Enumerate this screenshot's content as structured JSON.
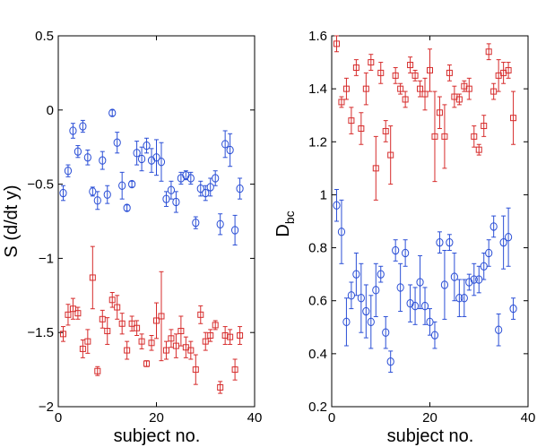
{
  "colors": {
    "blue": "#2b4fd6",
    "red": "#d62b2b",
    "axis": "#000000"
  },
  "chart_data": [
    {
      "type": "scatter",
      "xlabel": "subject no.",
      "ylabel": "S (d/dt y)",
      "xlim": [
        0,
        40
      ],
      "ylim": [
        -2,
        0.5
      ],
      "xticks": [
        0,
        20,
        40
      ],
      "xtick_labels": [
        "0",
        "20",
        "40"
      ],
      "yticks": [
        -2,
        -1.5,
        -1,
        -0.5,
        0,
        0.5
      ],
      "ytick_labels": [
        "−2",
        "−1.5",
        "−1",
        "−0.5",
        "0",
        "0.5"
      ],
      "grid": false,
      "series": [
        {
          "color": "#2b4fd6",
          "marker": "circle",
          "points": [
            {
              "x": 1,
              "y": -0.56,
              "err": 0.05
            },
            {
              "x": 2,
              "y": -0.41,
              "err": 0.04
            },
            {
              "x": 3,
              "y": -0.14,
              "err": 0.05
            },
            {
              "x": 4,
              "y": -0.28,
              "err": 0.04
            },
            {
              "x": 5,
              "y": -0.11,
              "err": 0.04
            },
            {
              "x": 6,
              "y": -0.32,
              "err": 0.05
            },
            {
              "x": 7,
              "y": -0.55,
              "err": 0.03
            },
            {
              "x": 8,
              "y": -0.61,
              "err": 0.06
            },
            {
              "x": 9,
              "y": -0.34,
              "err": 0.06
            },
            {
              "x": 10,
              "y": -0.57,
              "err": 0.06
            },
            {
              "x": 11,
              "y": -0.02,
              "err": 0.02
            },
            {
              "x": 12,
              "y": -0.22,
              "err": 0.07
            },
            {
              "x": 13,
              "y": -0.51,
              "err": 0.09
            },
            {
              "x": 14,
              "y": -0.66,
              "err": 0.02
            },
            {
              "x": 15,
              "y": -0.5,
              "err": 0.02
            },
            {
              "x": 16,
              "y": -0.29,
              "err": 0.08
            },
            {
              "x": 17,
              "y": -0.33,
              "err": 0.08
            },
            {
              "x": 18,
              "y": -0.24,
              "err": 0.05
            },
            {
              "x": 19,
              "y": -0.34,
              "err": 0.08
            },
            {
              "x": 20,
              "y": -0.32,
              "err": 0.12
            },
            {
              "x": 21,
              "y": -0.35,
              "err": 0.13
            },
            {
              "x": 22,
              "y": -0.6,
              "err": 0.05
            },
            {
              "x": 23,
              "y": -0.54,
              "err": 0.06
            },
            {
              "x": 24,
              "y": -0.62,
              "err": 0.07
            },
            {
              "x": 25,
              "y": -0.46,
              "err": 0.04
            },
            {
              "x": 26,
              "y": -0.44,
              "err": 0.03
            },
            {
              "x": 27,
              "y": -0.46,
              "err": 0.04
            },
            {
              "x": 28,
              "y": -0.76,
              "err": 0.04
            },
            {
              "x": 29,
              "y": -0.53,
              "err": 0.05
            },
            {
              "x": 30,
              "y": -0.56,
              "err": 0.05
            },
            {
              "x": 31,
              "y": -0.52,
              "err": 0.06
            },
            {
              "x": 32,
              "y": -0.46,
              "err": 0.05
            },
            {
              "x": 33,
              "y": -0.77,
              "err": 0.07
            },
            {
              "x": 34,
              "y": -0.23,
              "err": 0.09
            },
            {
              "x": 35,
              "y": -0.27,
              "err": 0.11
            },
            {
              "x": 36,
              "y": -0.81,
              "err": 0.1
            },
            {
              "x": 37,
              "y": -0.53,
              "err": 0.07
            }
          ]
        },
        {
          "color": "#d62b2b",
          "marker": "square",
          "points": [
            {
              "x": 1,
              "y": -1.51,
              "err": 0.05
            },
            {
              "x": 2,
              "y": -1.38,
              "err": 0.07
            },
            {
              "x": 3,
              "y": -1.34,
              "err": 0.07
            },
            {
              "x": 4,
              "y": -1.37,
              "err": 0.04
            },
            {
              "x": 5,
              "y": -1.61,
              "err": 0.06
            },
            {
              "x": 6,
              "y": -1.56,
              "err": 0.08
            },
            {
              "x": 7,
              "y": -1.13,
              "err": 0.21
            },
            {
              "x": 8,
              "y": -1.76,
              "err": 0.03
            },
            {
              "x": 9,
              "y": -1.41,
              "err": 0.06
            },
            {
              "x": 10,
              "y": -1.49,
              "err": 0.09
            },
            {
              "x": 11,
              "y": -1.28,
              "err": 0.05
            },
            {
              "x": 12,
              "y": -1.33,
              "err": 0.08
            },
            {
              "x": 13,
              "y": -1.44,
              "err": 0.07
            },
            {
              "x": 14,
              "y": -1.62,
              "err": 0.06
            },
            {
              "x": 15,
              "y": -1.44,
              "err": 0.05
            },
            {
              "x": 16,
              "y": -1.47,
              "err": 0.05
            },
            {
              "x": 17,
              "y": -1.56,
              "err": 0.05
            },
            {
              "x": 18,
              "y": -1.71,
              "err": 0.02
            },
            {
              "x": 19,
              "y": -1.57,
              "err": 0.05
            },
            {
              "x": 20,
              "y": -1.42,
              "err": 0.12
            },
            {
              "x": 21,
              "y": -1.39,
              "err": 0.3
            },
            {
              "x": 22,
              "y": -1.62,
              "err": 0.06
            },
            {
              "x": 23,
              "y": -1.54,
              "err": 0.06
            },
            {
              "x": 24,
              "y": -1.59,
              "err": 0.08
            },
            {
              "x": 25,
              "y": -1.49,
              "err": 0.1
            },
            {
              "x": 26,
              "y": -1.6,
              "err": 0.07
            },
            {
              "x": 27,
              "y": -1.62,
              "err": 0.06
            },
            {
              "x": 28,
              "y": -1.75,
              "err": 0.1
            },
            {
              "x": 29,
              "y": -1.38,
              "err": 0.06
            },
            {
              "x": 30,
              "y": -1.56,
              "err": 0.06
            },
            {
              "x": 31,
              "y": -1.52,
              "err": 0.04
            },
            {
              "x": 32,
              "y": -1.45,
              "err": 0.03
            },
            {
              "x": 33,
              "y": -1.87,
              "err": 0.04
            },
            {
              "x": 34,
              "y": -1.52,
              "err": 0.06
            },
            {
              "x": 35,
              "y": -1.53,
              "err": 0.05
            },
            {
              "x": 36,
              "y": -1.75,
              "err": 0.07
            },
            {
              "x": 37,
              "y": -1.52,
              "err": 0.06
            }
          ]
        }
      ]
    },
    {
      "type": "scatter",
      "xlabel": "subject no.",
      "ylabel": "D",
      "ylabel_sub": "bc",
      "xlim": [
        0,
        40
      ],
      "ylim": [
        0.2,
        1.6
      ],
      "xticks": [
        0,
        20,
        40
      ],
      "xtick_labels": [
        "0",
        "20",
        "40"
      ],
      "yticks": [
        0.2,
        0.4,
        0.6,
        0.8,
        1,
        1.2,
        1.4,
        1.6
      ],
      "ytick_labels": [
        "0.2",
        "0.4",
        "0.6",
        "0.8",
        "1",
        "1.2",
        "1.4",
        "1.6"
      ],
      "grid": false,
      "series": [
        {
          "color": "#d62b2b",
          "marker": "square",
          "points": [
            {
              "x": 1,
              "y": 1.57,
              "err": 0.03
            },
            {
              "x": 2,
              "y": 1.35,
              "err": 0.02
            },
            {
              "x": 3,
              "y": 1.4,
              "err": 0.04
            },
            {
              "x": 4,
              "y": 1.28,
              "err": 0.05
            },
            {
              "x": 5,
              "y": 1.48,
              "err": 0.03
            },
            {
              "x": 6,
              "y": 1.25,
              "err": 0.06
            },
            {
              "x": 7,
              "y": 1.4,
              "err": 0.06
            },
            {
              "x": 8,
              "y": 1.5,
              "err": 0.03
            },
            {
              "x": 9,
              "y": 1.1,
              "err": 0.12
            },
            {
              "x": 10,
              "y": 1.46,
              "err": 0.04
            },
            {
              "x": 11,
              "y": 1.24,
              "err": 0.04
            },
            {
              "x": 12,
              "y": 1.15,
              "err": 0.11
            },
            {
              "x": 13,
              "y": 1.45,
              "err": 0.03
            },
            {
              "x": 14,
              "y": 1.4,
              "err": 0.02
            },
            {
              "x": 15,
              "y": 1.36,
              "err": 0.03
            },
            {
              "x": 16,
              "y": 1.49,
              "err": 0.03
            },
            {
              "x": 17,
              "y": 1.45,
              "err": 0.02
            },
            {
              "x": 18,
              "y": 1.4,
              "err": 0.03
            },
            {
              "x": 19,
              "y": 1.38,
              "err": 0.06
            },
            {
              "x": 20,
              "y": 1.47,
              "err": 0.08
            },
            {
              "x": 21,
              "y": 1.22,
              "err": 0.17
            },
            {
              "x": 22,
              "y": 1.31,
              "err": 0.06
            },
            {
              "x": 23,
              "y": 1.22,
              "err": 0.12
            },
            {
              "x": 24,
              "y": 1.46,
              "err": 0.03
            },
            {
              "x": 25,
              "y": 1.37,
              "err": 0.04
            },
            {
              "x": 26,
              "y": 1.36,
              "err": 0.02
            },
            {
              "x": 27,
              "y": 1.41,
              "err": 0.02
            },
            {
              "x": 28,
              "y": 1.4,
              "err": 0.04
            },
            {
              "x": 29,
              "y": 1.22,
              "err": 0.04
            },
            {
              "x": 30,
              "y": 1.17,
              "err": 0.02
            },
            {
              "x": 31,
              "y": 1.26,
              "err": 0.04
            },
            {
              "x": 32,
              "y": 1.54,
              "err": 0.03
            },
            {
              "x": 33,
              "y": 1.39,
              "err": 0.03
            },
            {
              "x": 34,
              "y": 1.45,
              "err": 0.06
            },
            {
              "x": 35,
              "y": 1.46,
              "err": 0.04
            },
            {
              "x": 36,
              "y": 1.47,
              "err": 0.03
            },
            {
              "x": 37,
              "y": 1.29,
              "err": 0.1
            }
          ]
        },
        {
          "color": "#2b4fd6",
          "marker": "circle",
          "points": [
            {
              "x": 1,
              "y": 0.96,
              "err": 0.06
            },
            {
              "x": 2,
              "y": 0.86,
              "err": 0.12
            },
            {
              "x": 3,
              "y": 0.52,
              "err": 0.09
            },
            {
              "x": 4,
              "y": 0.62,
              "err": 0.05
            },
            {
              "x": 5,
              "y": 0.7,
              "err": 0.08
            },
            {
              "x": 6,
              "y": 0.61,
              "err": 0.13
            },
            {
              "x": 7,
              "y": 0.56,
              "err": 0.1
            },
            {
              "x": 8,
              "y": 0.52,
              "err": 0.1
            },
            {
              "x": 9,
              "y": 0.64,
              "err": 0.1
            },
            {
              "x": 10,
              "y": 0.7,
              "err": 0.03
            },
            {
              "x": 11,
              "y": 0.48,
              "err": 0.06
            },
            {
              "x": 12,
              "y": 0.37,
              "err": 0.04
            },
            {
              "x": 13,
              "y": 0.79,
              "err": 0.04
            },
            {
              "x": 14,
              "y": 0.65,
              "err": 0.09
            },
            {
              "x": 15,
              "y": 0.78,
              "err": 0.05
            },
            {
              "x": 16,
              "y": 0.59,
              "err": 0.07
            },
            {
              "x": 17,
              "y": 0.58,
              "err": 0.07
            },
            {
              "x": 18,
              "y": 0.67,
              "err": 0.1
            },
            {
              "x": 19,
              "y": 0.58,
              "err": 0.07
            },
            {
              "x": 20,
              "y": 0.52,
              "err": 0.05
            },
            {
              "x": 21,
              "y": 0.47,
              "err": 0.05
            },
            {
              "x": 22,
              "y": 0.82,
              "err": 0.04
            },
            {
              "x": 23,
              "y": 0.66,
              "err": 0.13
            },
            {
              "x": 24,
              "y": 0.82,
              "err": 0.03
            },
            {
              "x": 25,
              "y": 0.69,
              "err": 0.09
            },
            {
              "x": 26,
              "y": 0.61,
              "err": 0.07
            },
            {
              "x": 27,
              "y": 0.61,
              "err": 0.07
            },
            {
              "x": 28,
              "y": 0.67,
              "err": 0.03
            },
            {
              "x": 29,
              "y": 0.68,
              "err": 0.06
            },
            {
              "x": 30,
              "y": 0.68,
              "err": 0.05
            },
            {
              "x": 31,
              "y": 0.73,
              "err": 0.05
            },
            {
              "x": 32,
              "y": 0.78,
              "err": 0.05
            },
            {
              "x": 33,
              "y": 0.88,
              "err": 0.04
            },
            {
              "x": 34,
              "y": 0.49,
              "err": 0.06
            },
            {
              "x": 35,
              "y": 0.82,
              "err": 0.1
            },
            {
              "x": 36,
              "y": 0.84,
              "err": 0.11
            },
            {
              "x": 37,
              "y": 0.57,
              "err": 0.04
            }
          ]
        }
      ]
    }
  ]
}
